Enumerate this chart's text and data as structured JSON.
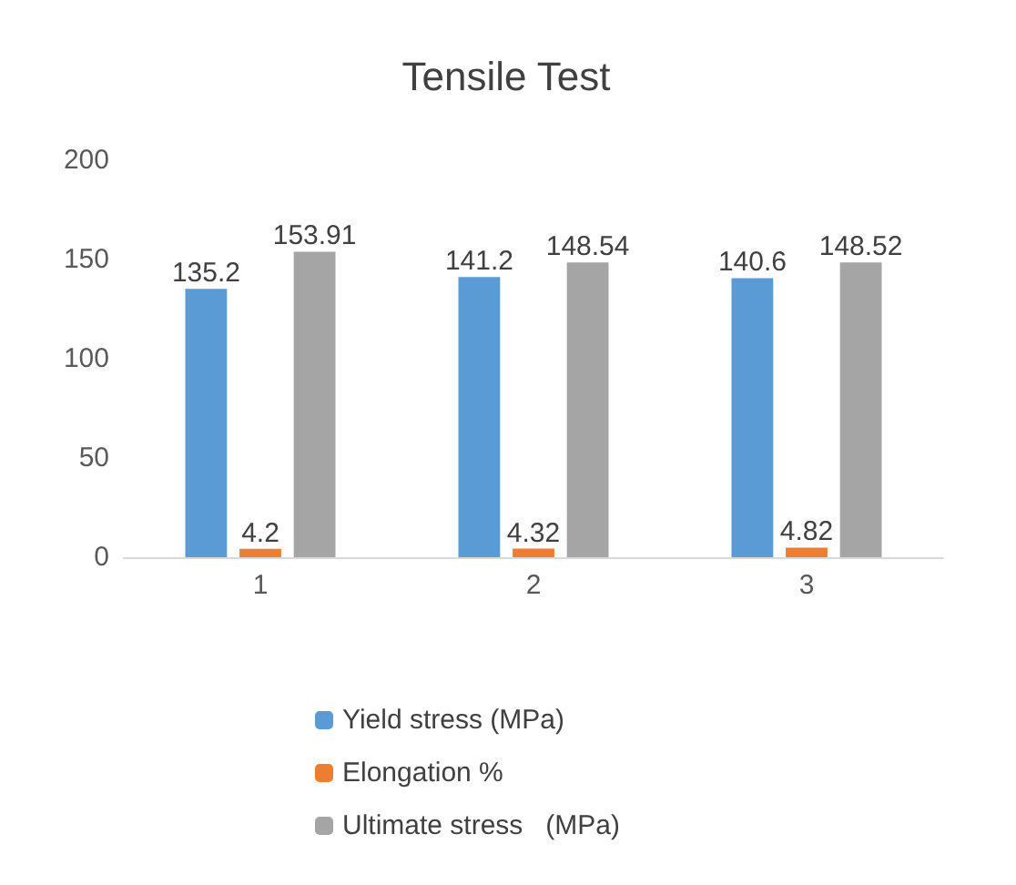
{
  "chart_data": {
    "type": "bar",
    "title": "Tensile Test",
    "categories": [
      "1",
      "2",
      "3"
    ],
    "series": [
      {
        "name": "Yield stress (MPa)",
        "color": "#5b9bd5",
        "values": [
          135.2,
          141.2,
          140.6
        ]
      },
      {
        "name": "Elongation %",
        "color": "#ed7d31",
        "values": [
          4.2,
          4.32,
          4.82
        ]
      },
      {
        "name": "Ultimate stress   (MPa)",
        "color": "#a5a5a5",
        "values": [
          153.91,
          148.54,
          148.52
        ]
      }
    ],
    "ylim": [
      0,
      200
    ],
    "yticks": [
      0,
      50,
      100,
      150,
      200
    ],
    "grid": false,
    "legend": "bottom",
    "data_labels": true
  }
}
